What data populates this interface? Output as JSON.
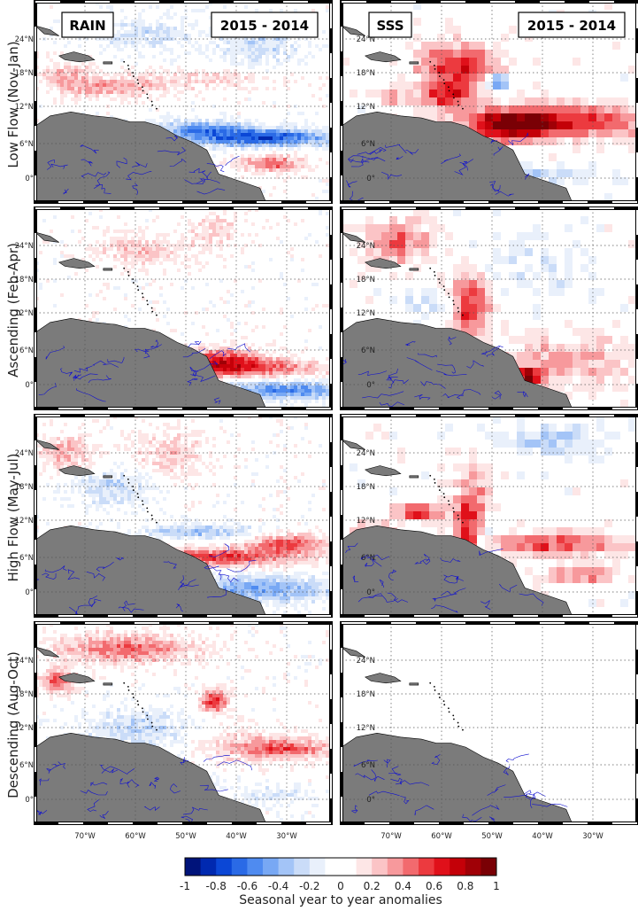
{
  "columns": [
    "RAIN",
    "SSS"
  ],
  "difference_label": "2015 - 2014",
  "rows": [
    {
      "label": "Low Flow (Nov-Jan)"
    },
    {
      "label": "Ascending (Feb-Apr)"
    },
    {
      "label": "High Flow (May-Jul)"
    },
    {
      "label": "Descending (Aug-Oct)"
    }
  ],
  "lat_ticks": [
    "24°N",
    "18°N",
    "12°N",
    "6°N",
    "0°"
  ],
  "lon_ticks": [
    "70°W",
    "60°W",
    "50°W",
    "40°W",
    "30°W"
  ],
  "colorbar": {
    "ticks": [
      "-1",
      "-0.8",
      "-0.6",
      "-0.4",
      "-0.2",
      "0",
      "0.2",
      "0.4",
      "0.6",
      "0.8",
      "1"
    ],
    "title": "Seasonal year to year anomalies",
    "range": [
      -1,
      1
    ],
    "colors": [
      "#00137a",
      "#0029b0",
      "#0b47d6",
      "#2a6ae6",
      "#4f8bf0",
      "#78a8f4",
      "#a3c4f7",
      "#cadcf8",
      "#e9f0fb",
      "#ffffff",
      "#ffffff",
      "#fde6e6",
      "#fbc4c6",
      "#f7999c",
      "#f26a6e",
      "#ec3a3f",
      "#e0101a",
      "#c40008",
      "#a00006",
      "#7a0005"
    ]
  },
  "colors": {
    "land": "#7b7b7b",
    "rivers": "#1010d0",
    "grid": "#555555"
  }
}
